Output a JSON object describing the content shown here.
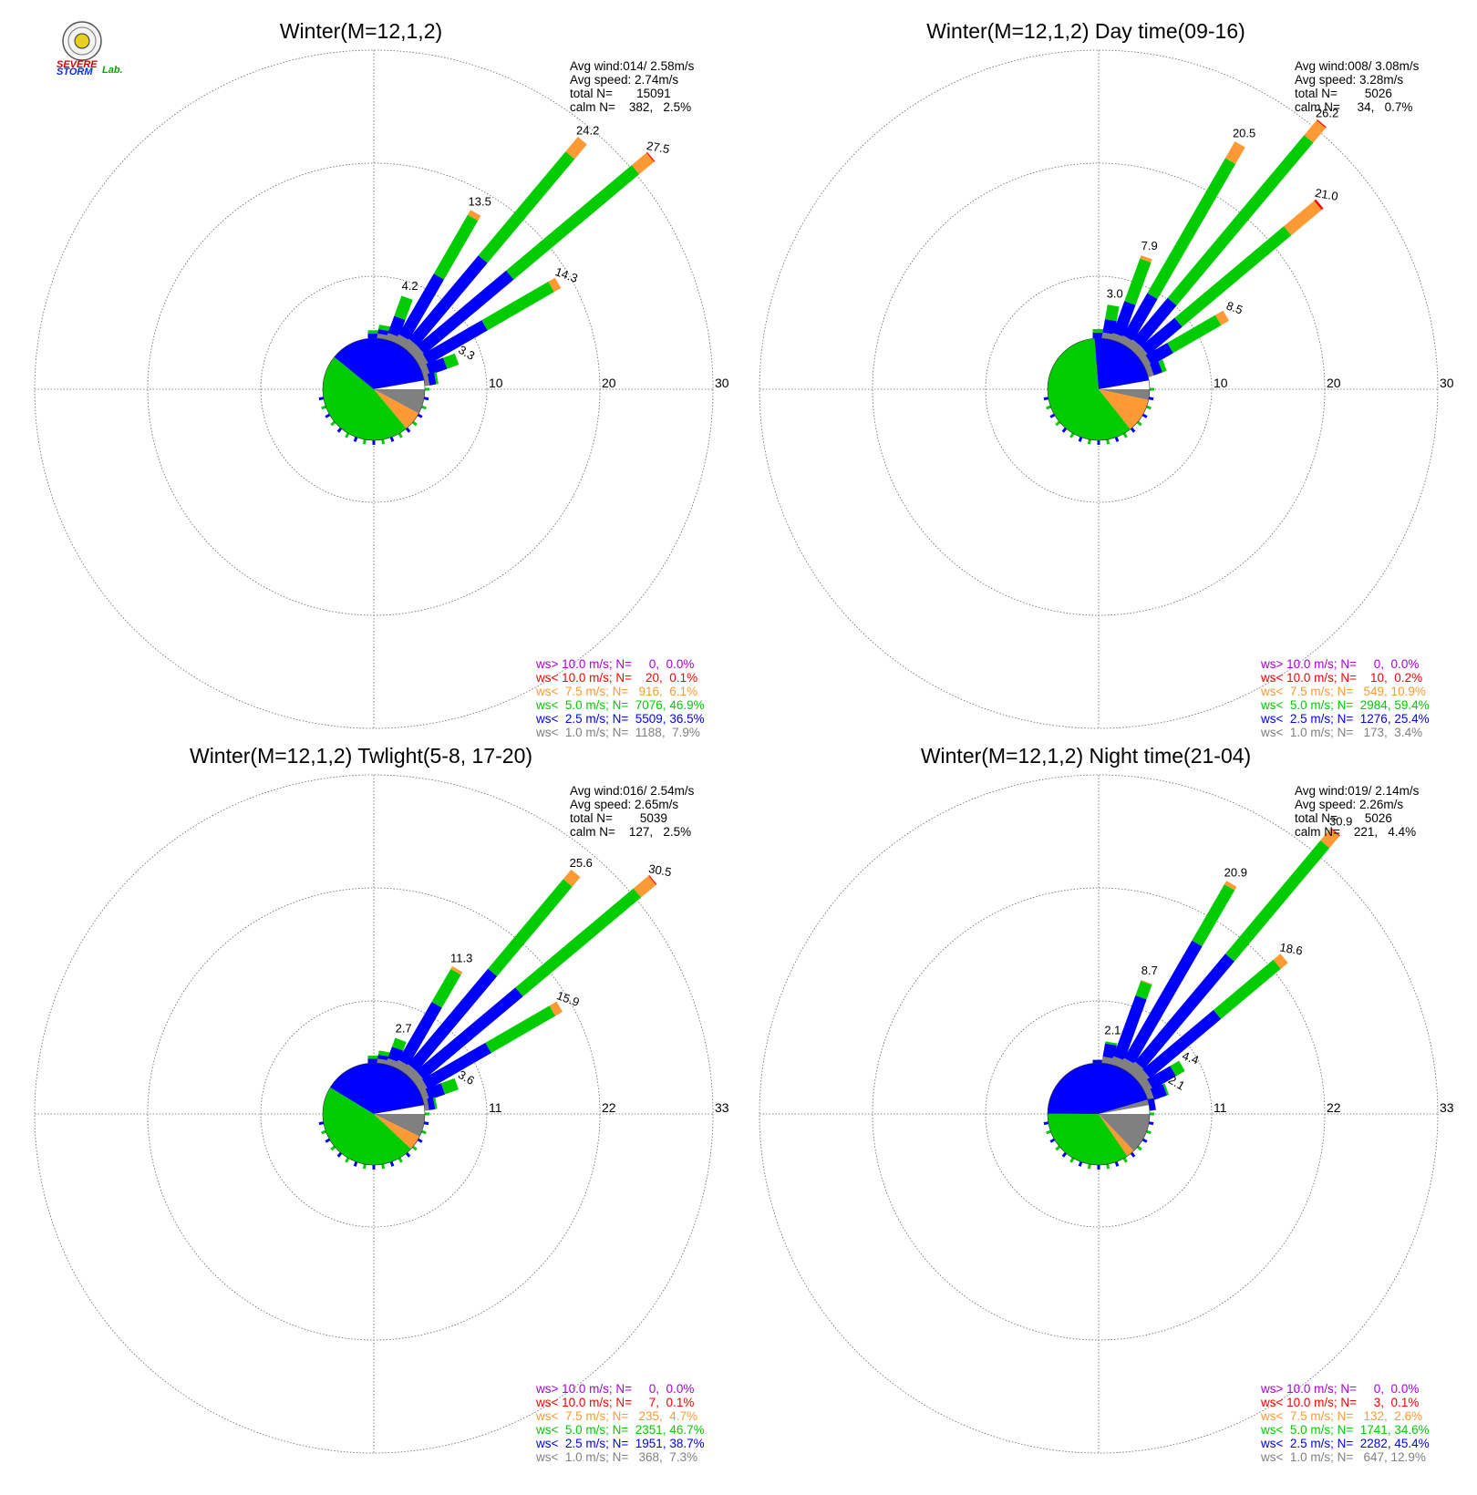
{
  "colors": {
    "ws_gt10": "#aa00dd",
    "ws_lt10": "#ff0000",
    "ws_lt7_5": "#ff9933",
    "ws_lt5": "#00cc00",
    "ws_lt2_5": "#0000ff",
    "ws_lt1": "#808080"
  },
  "logo": {
    "text_severe": "SEVERE",
    "text_storm": "STORM",
    "text_lab": "Lab."
  },
  "chart_data": [
    {
      "type": "windrose",
      "title": "Winter(M=12,1,2)",
      "info": [
        "Avg wind:014/ 2.58m/s",
        "Avg speed: 2.74m/s",
        "total N=       15091",
        "calm N=    382,   2.5%"
      ],
      "rings": [
        10,
        20,
        30
      ],
      "bars": [
        {
          "angle": 0,
          "label": "",
          "segments": [
            {
              "c": "ws_lt2_5",
              "v": 0.4
            },
            {
              "c": "ws_lt5",
              "v": 0.3
            }
          ]
        },
        {
          "angle": 10,
          "label": "",
          "segments": [
            {
              "c": "ws_lt1",
              "v": 0.4
            },
            {
              "c": "ws_lt2_5",
              "v": 0.4
            },
            {
              "c": "ws_lt5",
              "v": 0.4
            }
          ]
        },
        {
          "angle": 20,
          "label": "4.2",
          "segments": [
            {
              "c": "ws_lt1",
              "v": 0.6
            },
            {
              "c": "ws_lt2_5",
              "v": 1.6
            },
            {
              "c": "ws_lt5",
              "v": 1.9
            }
          ]
        },
        {
          "angle": 30,
          "label": "13.5",
          "segments": [
            {
              "c": "ws_lt1",
              "v": 0.8
            },
            {
              "c": "ws_lt2_5",
              "v": 6.2
            },
            {
              "c": "ws_lt5",
              "v": 6.0
            },
            {
              "c": "ws_lt7_5",
              "v": 0.5
            }
          ]
        },
        {
          "angle": 40,
          "label": "24.2",
          "segments": [
            {
              "c": "ws_lt1",
              "v": 0.9
            },
            {
              "c": "ws_lt2_5",
              "v": 9.6
            },
            {
              "c": "ws_lt5",
              "v": 12.0
            },
            {
              "c": "ws_lt7_5",
              "v": 1.7
            }
          ]
        },
        {
          "angle": 50,
          "label": "27.5",
          "segments": [
            {
              "c": "ws_lt1",
              "v": 0.9
            },
            {
              "c": "ws_lt2_5",
              "v": 10.3
            },
            {
              "c": "ws_lt5",
              "v": 14.5
            },
            {
              "c": "ws_lt7_5",
              "v": 1.7
            },
            {
              "c": "ws_lt10",
              "v": 0.1
            }
          ]
        },
        {
          "angle": 60,
          "label": "14.3",
          "segments": [
            {
              "c": "ws_lt1",
              "v": 0.8
            },
            {
              "c": "ws_lt2_5",
              "v": 6.0
            },
            {
              "c": "ws_lt5",
              "v": 6.8
            },
            {
              "c": "ws_lt7_5",
              "v": 0.7
            }
          ]
        },
        {
          "angle": 70,
          "label": "3.3",
          "segments": [
            {
              "c": "ws_lt1",
              "v": 0.6
            },
            {
              "c": "ws_lt2_5",
              "v": 1.6
            },
            {
              "c": "ws_lt5",
              "v": 1.1
            }
          ]
        },
        {
          "angle": 80,
          "label": "",
          "segments": [
            {
              "c": "ws_lt1",
              "v": 0.4
            },
            {
              "c": "ws_lt2_5",
              "v": 0.6
            },
            {
              "c": "ws_lt5",
              "v": 0.2
            }
          ]
        }
      ],
      "pie": [
        {
          "c": "ws_lt1",
          "v": 7.9
        },
        {
          "c": "ws_lt7_5",
          "v": 6.1
        },
        {
          "c": "ws_lt5",
          "v": 46.9
        },
        {
          "c": "ws_lt2_5",
          "v": 36.5
        },
        {
          "c": "ws_lt1",
          "v": 2.6
        }
      ],
      "legend": [
        {
          "c": "ws_gt10",
          "text": "ws> 10.0 m/s; N=     0,  0.0%"
        },
        {
          "c": "ws_lt10",
          "text": "ws< 10.0 m/s; N=    20,  0.1%"
        },
        {
          "c": "ws_lt7_5",
          "text": "ws<  7.5 m/s; N=   916,  6.1%"
        },
        {
          "c": "ws_lt5",
          "text": "ws<  5.0 m/s; N=  7076, 46.9%"
        },
        {
          "c": "ws_lt2_5",
          "text": "ws<  2.5 m/s; N=  5509, 36.5%"
        },
        {
          "c": "ws_lt1",
          "text": "ws<  1.0 m/s; N=  1188,  7.9%"
        }
      ]
    },
    {
      "type": "windrose",
      "title": "Winter(M=12,1,2) Day time(09-16)",
      "info": [
        "Avg wind:008/ 3.08m/s",
        "Avg speed: 3.28m/s",
        "total N=        5026",
        "calm N=     34,   0.7%"
      ],
      "rings": [
        10,
        20,
        30
      ],
      "bars": [
        {
          "angle": 0,
          "label": "",
          "segments": [
            {
              "c": "ws_lt2_5",
              "v": 0.5
            },
            {
              "c": "ws_lt5",
              "v": 0.3
            }
          ]
        },
        {
          "angle": 10,
          "label": "3.0",
          "segments": [
            {
              "c": "ws_lt1",
              "v": 0.5
            },
            {
              "c": "ws_lt2_5",
              "v": 1.2
            },
            {
              "c": "ws_lt5",
              "v": 1.3
            }
          ]
        },
        {
          "angle": 20,
          "label": "7.9",
          "segments": [
            {
              "c": "ws_lt1",
              "v": 0.6
            },
            {
              "c": "ws_lt2_5",
              "v": 3.0
            },
            {
              "c": "ws_lt5",
              "v": 4.0
            },
            {
              "c": "ws_lt7_5",
              "v": 0.3
            }
          ]
        },
        {
          "angle": 30,
          "label": "20.5",
          "segments": [
            {
              "c": "ws_lt1",
              "v": 0.7
            },
            {
              "c": "ws_lt2_5",
              "v": 4.3
            },
            {
              "c": "ws_lt5",
              "v": 13.8
            },
            {
              "c": "ws_lt7_5",
              "v": 1.7
            }
          ]
        },
        {
          "angle": 40,
          "label": "26.2",
          "segments": [
            {
              "c": "ws_lt1",
              "v": 0.8
            },
            {
              "c": "ws_lt2_5",
              "v": 4.8
            },
            {
              "c": "ws_lt5",
              "v": 18.8
            },
            {
              "c": "ws_lt7_5",
              "v": 1.7
            },
            {
              "c": "ws_lt10",
              "v": 0.1
            }
          ]
        },
        {
          "angle": 50,
          "label": "21.0",
          "segments": [
            {
              "c": "ws_lt1",
              "v": 0.8
            },
            {
              "c": "ws_lt2_5",
              "v": 3.9
            },
            {
              "c": "ws_lt5",
              "v": 12.6
            },
            {
              "c": "ws_lt7_5",
              "v": 3.5
            },
            {
              "c": "ws_lt10",
              "v": 0.2
            }
          ]
        },
        {
          "angle": 60,
          "label": "8.5",
          "segments": [
            {
              "c": "ws_lt1",
              "v": 0.6
            },
            {
              "c": "ws_lt2_5",
              "v": 2.2
            },
            {
              "c": "ws_lt5",
              "v": 4.9
            },
            {
              "c": "ws_lt7_5",
              "v": 0.8
            }
          ]
        },
        {
          "angle": 70,
          "label": "",
          "segments": [
            {
              "c": "ws_lt1",
              "v": 0.5
            },
            {
              "c": "ws_lt2_5",
              "v": 0.8
            },
            {
              "c": "ws_lt5",
              "v": 0.4
            }
          ]
        }
      ],
      "pie": [
        {
          "c": "ws_lt1",
          "v": 3.4
        },
        {
          "c": "ws_lt7_5",
          "v": 10.9
        },
        {
          "c": "ws_lt5",
          "v": 59.4
        },
        {
          "c": "ws_lt2_5",
          "v": 25.4
        },
        {
          "c": "ws_lt1",
          "v": 0.9
        }
      ],
      "legend": [
        {
          "c": "ws_gt10",
          "text": "ws> 10.0 m/s; N=     0,  0.0%"
        },
        {
          "c": "ws_lt10",
          "text": "ws< 10.0 m/s; N=    10,  0.2%"
        },
        {
          "c": "ws_lt7_5",
          "text": "ws<  7.5 m/s; N=   549, 10.9%"
        },
        {
          "c": "ws_lt5",
          "text": "ws<  5.0 m/s; N=  2984, 59.4%"
        },
        {
          "c": "ws_lt2_5",
          "text": "ws<  2.5 m/s; N=  1276, 25.4%"
        },
        {
          "c": "ws_lt1",
          "text": "ws<  1.0 m/s; N=   173,  3.4%"
        }
      ]
    },
    {
      "type": "windrose",
      "title": "Winter(M=12,1,2) Twlight(5-8, 17-20)",
      "info": [
        "Avg wind:016/ 2.54m/s",
        "Avg speed: 2.65m/s",
        "total N=        5039",
        "calm N=    127,   2.5%"
      ],
      "rings": [
        11,
        22,
        33
      ],
      "bars": [
        {
          "angle": 0,
          "label": "",
          "segments": [
            {
              "c": "ws_lt2_5",
              "v": 0.4
            },
            {
              "c": "ws_lt5",
              "v": 0.3
            }
          ]
        },
        {
          "angle": 10,
          "label": "",
          "segments": [
            {
              "c": "ws_lt1",
              "v": 0.4
            },
            {
              "c": "ws_lt2_5",
              "v": 0.4
            },
            {
              "c": "ws_lt5",
              "v": 0.4
            }
          ]
        },
        {
          "angle": 20,
          "label": "2.7",
          "segments": [
            {
              "c": "ws_lt1",
              "v": 0.6
            },
            {
              "c": "ws_lt2_5",
              "v": 1.2
            },
            {
              "c": "ws_lt5",
              "v": 0.9
            }
          ]
        },
        {
          "angle": 30,
          "label": "11.3",
          "segments": [
            {
              "c": "ws_lt1",
              "v": 0.8
            },
            {
              "c": "ws_lt2_5",
              "v": 6.5
            },
            {
              "c": "ws_lt5",
              "v": 3.7
            },
            {
              "c": "ws_lt7_5",
              "v": 0.3
            }
          ]
        },
        {
          "angle": 40,
          "label": "25.6",
          "segments": [
            {
              "c": "ws_lt1",
              "v": 0.9
            },
            {
              "c": "ws_lt2_5",
              "v": 12.1
            },
            {
              "c": "ws_lt5",
              "v": 11.4
            },
            {
              "c": "ws_lt7_5",
              "v": 1.2
            }
          ]
        },
        {
          "angle": 50,
          "label": "30.5",
          "segments": [
            {
              "c": "ws_lt1",
              "v": 0.9
            },
            {
              "c": "ws_lt2_5",
              "v": 12.6
            },
            {
              "c": "ws_lt5",
              "v": 15.0
            },
            {
              "c": "ws_lt7_5",
              "v": 1.9
            },
            {
              "c": "ws_lt10",
              "v": 0.1
            }
          ]
        },
        {
          "angle": 60,
          "label": "15.9",
          "segments": [
            {
              "c": "ws_lt1",
              "v": 0.8
            },
            {
              "c": "ws_lt2_5",
              "v": 7.1
            },
            {
              "c": "ws_lt5",
              "v": 7.2
            },
            {
              "c": "ws_lt7_5",
              "v": 0.8
            }
          ]
        },
        {
          "angle": 70,
          "label": "3.6",
          "segments": [
            {
              "c": "ws_lt1",
              "v": 0.6
            },
            {
              "c": "ws_lt2_5",
              "v": 1.6
            },
            {
              "c": "ws_lt5",
              "v": 1.4
            }
          ]
        },
        {
          "angle": 80,
          "label": "",
          "segments": [
            {
              "c": "ws_lt1",
              "v": 0.4
            },
            {
              "c": "ws_lt2_5",
              "v": 0.6
            },
            {
              "c": "ws_lt5",
              "v": 0.2
            }
          ]
        }
      ],
      "pie": [
        {
          "c": "ws_lt1",
          "v": 7.3
        },
        {
          "c": "ws_lt7_5",
          "v": 4.7
        },
        {
          "c": "ws_lt5",
          "v": 46.7
        },
        {
          "c": "ws_lt2_5",
          "v": 38.7
        },
        {
          "c": "ws_lt1",
          "v": 2.6
        }
      ],
      "legend": [
        {
          "c": "ws_gt10",
          "text": "ws> 10.0 m/s; N=     0,  0.0%"
        },
        {
          "c": "ws_lt10",
          "text": "ws< 10.0 m/s; N=     7,  0.1%"
        },
        {
          "c": "ws_lt7_5",
          "text": "ws<  7.5 m/s; N=   235,  4.7%"
        },
        {
          "c": "ws_lt5",
          "text": "ws<  5.0 m/s; N=  2351, 46.7%"
        },
        {
          "c": "ws_lt2_5",
          "text": "ws<  2.5 m/s; N=  1951, 38.7%"
        },
        {
          "c": "ws_lt1",
          "text": "ws<  1.0 m/s; N=   368,  7.3%"
        }
      ]
    },
    {
      "type": "windrose",
      "title": "Winter(M=12,1,2) Night time(21-04)",
      "info": [
        "Avg wind:019/ 2.14m/s",
        "Avg speed: 2.26m/s",
        "total N=        5026",
        "calm N=    221,   4.4%"
      ],
      "rings": [
        11,
        22,
        33
      ],
      "bars": [
        {
          "angle": 0,
          "label": "",
          "segments": [
            {
              "c": "ws_lt2_5",
              "v": 0.3
            }
          ]
        },
        {
          "angle": 10,
          "label": "2.1",
          "segments": [
            {
              "c": "ws_lt1",
              "v": 0.6
            },
            {
              "c": "ws_lt2_5",
              "v": 1.3
            },
            {
              "c": "ws_lt5",
              "v": 0.2
            }
          ]
        },
        {
          "angle": 20,
          "label": "8.7",
          "segments": [
            {
              "c": "ws_lt1",
              "v": 0.8
            },
            {
              "c": "ws_lt2_5",
              "v": 6.3
            },
            {
              "c": "ws_lt5",
              "v": 1.5
            },
            {
              "c": "ws_lt7_5",
              "v": 0.1
            }
          ]
        },
        {
          "angle": 30,
          "label": "20.9",
          "segments": [
            {
              "c": "ws_lt1",
              "v": 1.0
            },
            {
              "c": "ws_lt2_5",
              "v": 13.2
            },
            {
              "c": "ws_lt5",
              "v": 6.3
            },
            {
              "c": "ws_lt7_5",
              "v": 0.4
            }
          ]
        },
        {
          "angle": 40,
          "label": "30.9",
          "segments": [
            {
              "c": "ws_lt1",
              "v": 1.2
            },
            {
              "c": "ws_lt2_5",
              "v": 13.7
            },
            {
              "c": "ws_lt5",
              "v": 14.4
            },
            {
              "c": "ws_lt7_5",
              "v": 1.5
            },
            {
              "c": "ws_lt10",
              "v": 0.1
            }
          ]
        },
        {
          "angle": 50,
          "label": "18.6",
          "segments": [
            {
              "c": "ws_lt1",
              "v": 1.1
            },
            {
              "c": "ws_lt2_5",
              "v": 9.0
            },
            {
              "c": "ws_lt5",
              "v": 7.6
            },
            {
              "c": "ws_lt7_5",
              "v": 0.9
            }
          ]
        },
        {
          "angle": 60,
          "label": "4.4",
          "segments": [
            {
              "c": "ws_lt1",
              "v": 0.8
            },
            {
              "c": "ws_lt2_5",
              "v": 2.6
            },
            {
              "c": "ws_lt5",
              "v": 1.0
            }
          ]
        },
        {
          "angle": 70,
          "label": "2.1",
          "segments": [
            {
              "c": "ws_lt1",
              "v": 0.6
            },
            {
              "c": "ws_lt2_5",
              "v": 1.3
            },
            {
              "c": "ws_lt5",
              "v": 0.2
            }
          ]
        },
        {
          "angle": 80,
          "label": "",
          "segments": [
            {
              "c": "ws_lt2_5",
              "v": 0.6
            }
          ]
        }
      ],
      "pie": [
        {
          "c": "ws_lt1",
          "v": 12.9
        },
        {
          "c": "ws_lt7_5",
          "v": 2.6
        },
        {
          "c": "ws_lt5",
          "v": 34.6
        },
        {
          "c": "ws_lt2_5",
          "v": 45.4
        },
        {
          "c": "ws_lt1",
          "v": 4.5
        }
      ],
      "legend": [
        {
          "c": "ws_gt10",
          "text": "ws> 10.0 m/s; N=     0,  0.0%"
        },
        {
          "c": "ws_lt10",
          "text": "ws< 10.0 m/s; N=     3,  0.1%"
        },
        {
          "c": "ws_lt7_5",
          "text": "ws<  7.5 m/s; N=   132,  2.6%"
        },
        {
          "c": "ws_lt5",
          "text": "ws<  5.0 m/s; N=  1741, 34.6%"
        },
        {
          "c": "ws_lt2_5",
          "text": "ws<  2.5 m/s; N=  2282, 45.4%"
        },
        {
          "c": "ws_lt1",
          "text": "ws<  1.0 m/s; N=   647, 12.9%"
        }
      ]
    }
  ]
}
